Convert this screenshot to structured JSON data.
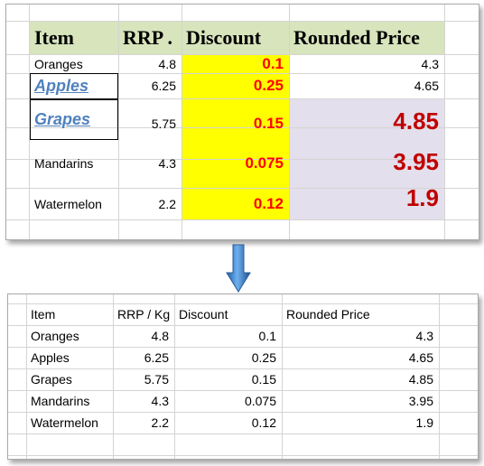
{
  "before": {
    "headers": {
      "item": "Item",
      "rrp": "RRP .",
      "discount": "Discount",
      "rounded": "Rounded Price"
    },
    "rows": [
      {
        "item": "Oranges",
        "rrp": "4.8",
        "discount": "0.1",
        "rounded": "4.3",
        "item_style": "normal",
        "rounded_style": "normal"
      },
      {
        "item": "Apples",
        "rrp": "6.25",
        "discount": "0.25",
        "rounded": "4.65",
        "item_style": "link",
        "rounded_style": "normal"
      },
      {
        "item": "Grapes",
        "rrp": "5.75",
        "discount": "0.15",
        "rounded": "4.85",
        "item_style": "link",
        "rounded_style": "big"
      },
      {
        "item": "Mandarins",
        "rrp": "4.3",
        "discount": "0.075",
        "rounded": "3.95",
        "item_style": "normal",
        "rounded_style": "big"
      },
      {
        "item": "Watermelon",
        "rrp": "2.2",
        "discount": "0.12",
        "rounded": "1.9",
        "item_style": "normal",
        "rounded_style": "big"
      }
    ],
    "colors": {
      "header_fill": "#d8e4bc",
      "discount_fill": "#ffff00",
      "rounded_fill": "#e4dfec",
      "discount_text": "#ff0000",
      "big_text": "#c00000",
      "link_text": "#4f81bd"
    }
  },
  "arrow_icon": "down-arrow-icon",
  "after": {
    "headers": {
      "item": "Item",
      "rrp": "RRP / Kg",
      "discount": "Discount",
      "rounded": "Rounded Price"
    },
    "rows": [
      {
        "item": "Oranges",
        "rrp": "4.8",
        "discount": "0.1",
        "rounded": "4.3"
      },
      {
        "item": "Apples",
        "rrp": "6.25",
        "discount": "0.25",
        "rounded": "4.65"
      },
      {
        "item": "Grapes",
        "rrp": "5.75",
        "discount": "0.15",
        "rounded": "4.85"
      },
      {
        "item": "Mandarins",
        "rrp": "4.3",
        "discount": "0.075",
        "rounded": "3.95"
      },
      {
        "item": "Watermelon",
        "rrp": "2.2",
        "discount": "0.12",
        "rounded": "1.9"
      }
    ]
  }
}
